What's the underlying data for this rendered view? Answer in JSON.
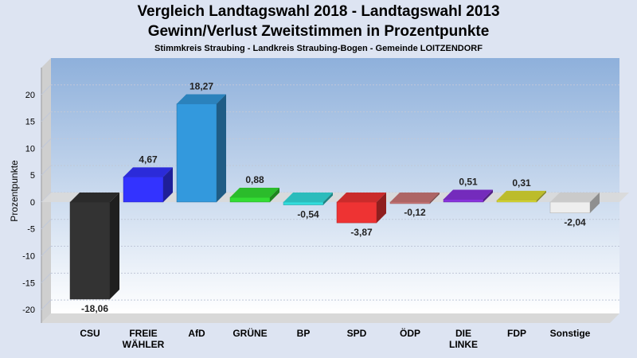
{
  "chart_data": {
    "type": "bar",
    "title": "Vergleich Landtagswahl 2018 - Landtagswahl 2013",
    "subtitle": "Gewinn/Verlust Zweitstimmen in Prozentpunkte",
    "subsubtitle": "Stimmkreis Straubing - Landkreis Straubing-Bogen - Gemeinde LOITZENDORF",
    "ylabel": "Prozentpunkte",
    "xlabel": "",
    "ylim": [
      -22.5,
      25
    ],
    "yticks": [
      20,
      15,
      10,
      5,
      0,
      -5,
      -10,
      -15,
      -20
    ],
    "grid": true,
    "categories": [
      [
        "CSU"
      ],
      [
        "FREIE",
        "WÄHLER"
      ],
      [
        "AfD"
      ],
      [
        "GRÜNE"
      ],
      [
        "BP"
      ],
      [
        "SPD"
      ],
      [
        "ÖDP"
      ],
      [
        "DIE",
        "LINKE"
      ],
      [
        "FDP"
      ],
      [
        "Sonstige"
      ]
    ],
    "values": [
      -18.06,
      4.67,
      18.27,
      0.88,
      -0.54,
      -3.87,
      -0.12,
      0.51,
      0.31,
      -2.04
    ],
    "value_labels": [
      "-18,06",
      "4,67",
      "18,27",
      "0,88",
      "-0,54",
      "-3,87",
      "-0,12",
      "0,51",
      "0,31",
      "-2,04"
    ],
    "colors": [
      "#333333",
      "#3333ff",
      "#3399dd",
      "#33dd33",
      "#33dddd",
      "#ee3333",
      "#cc7777",
      "#8833dd",
      "#dddd33",
      "#eeeeee"
    ]
  }
}
